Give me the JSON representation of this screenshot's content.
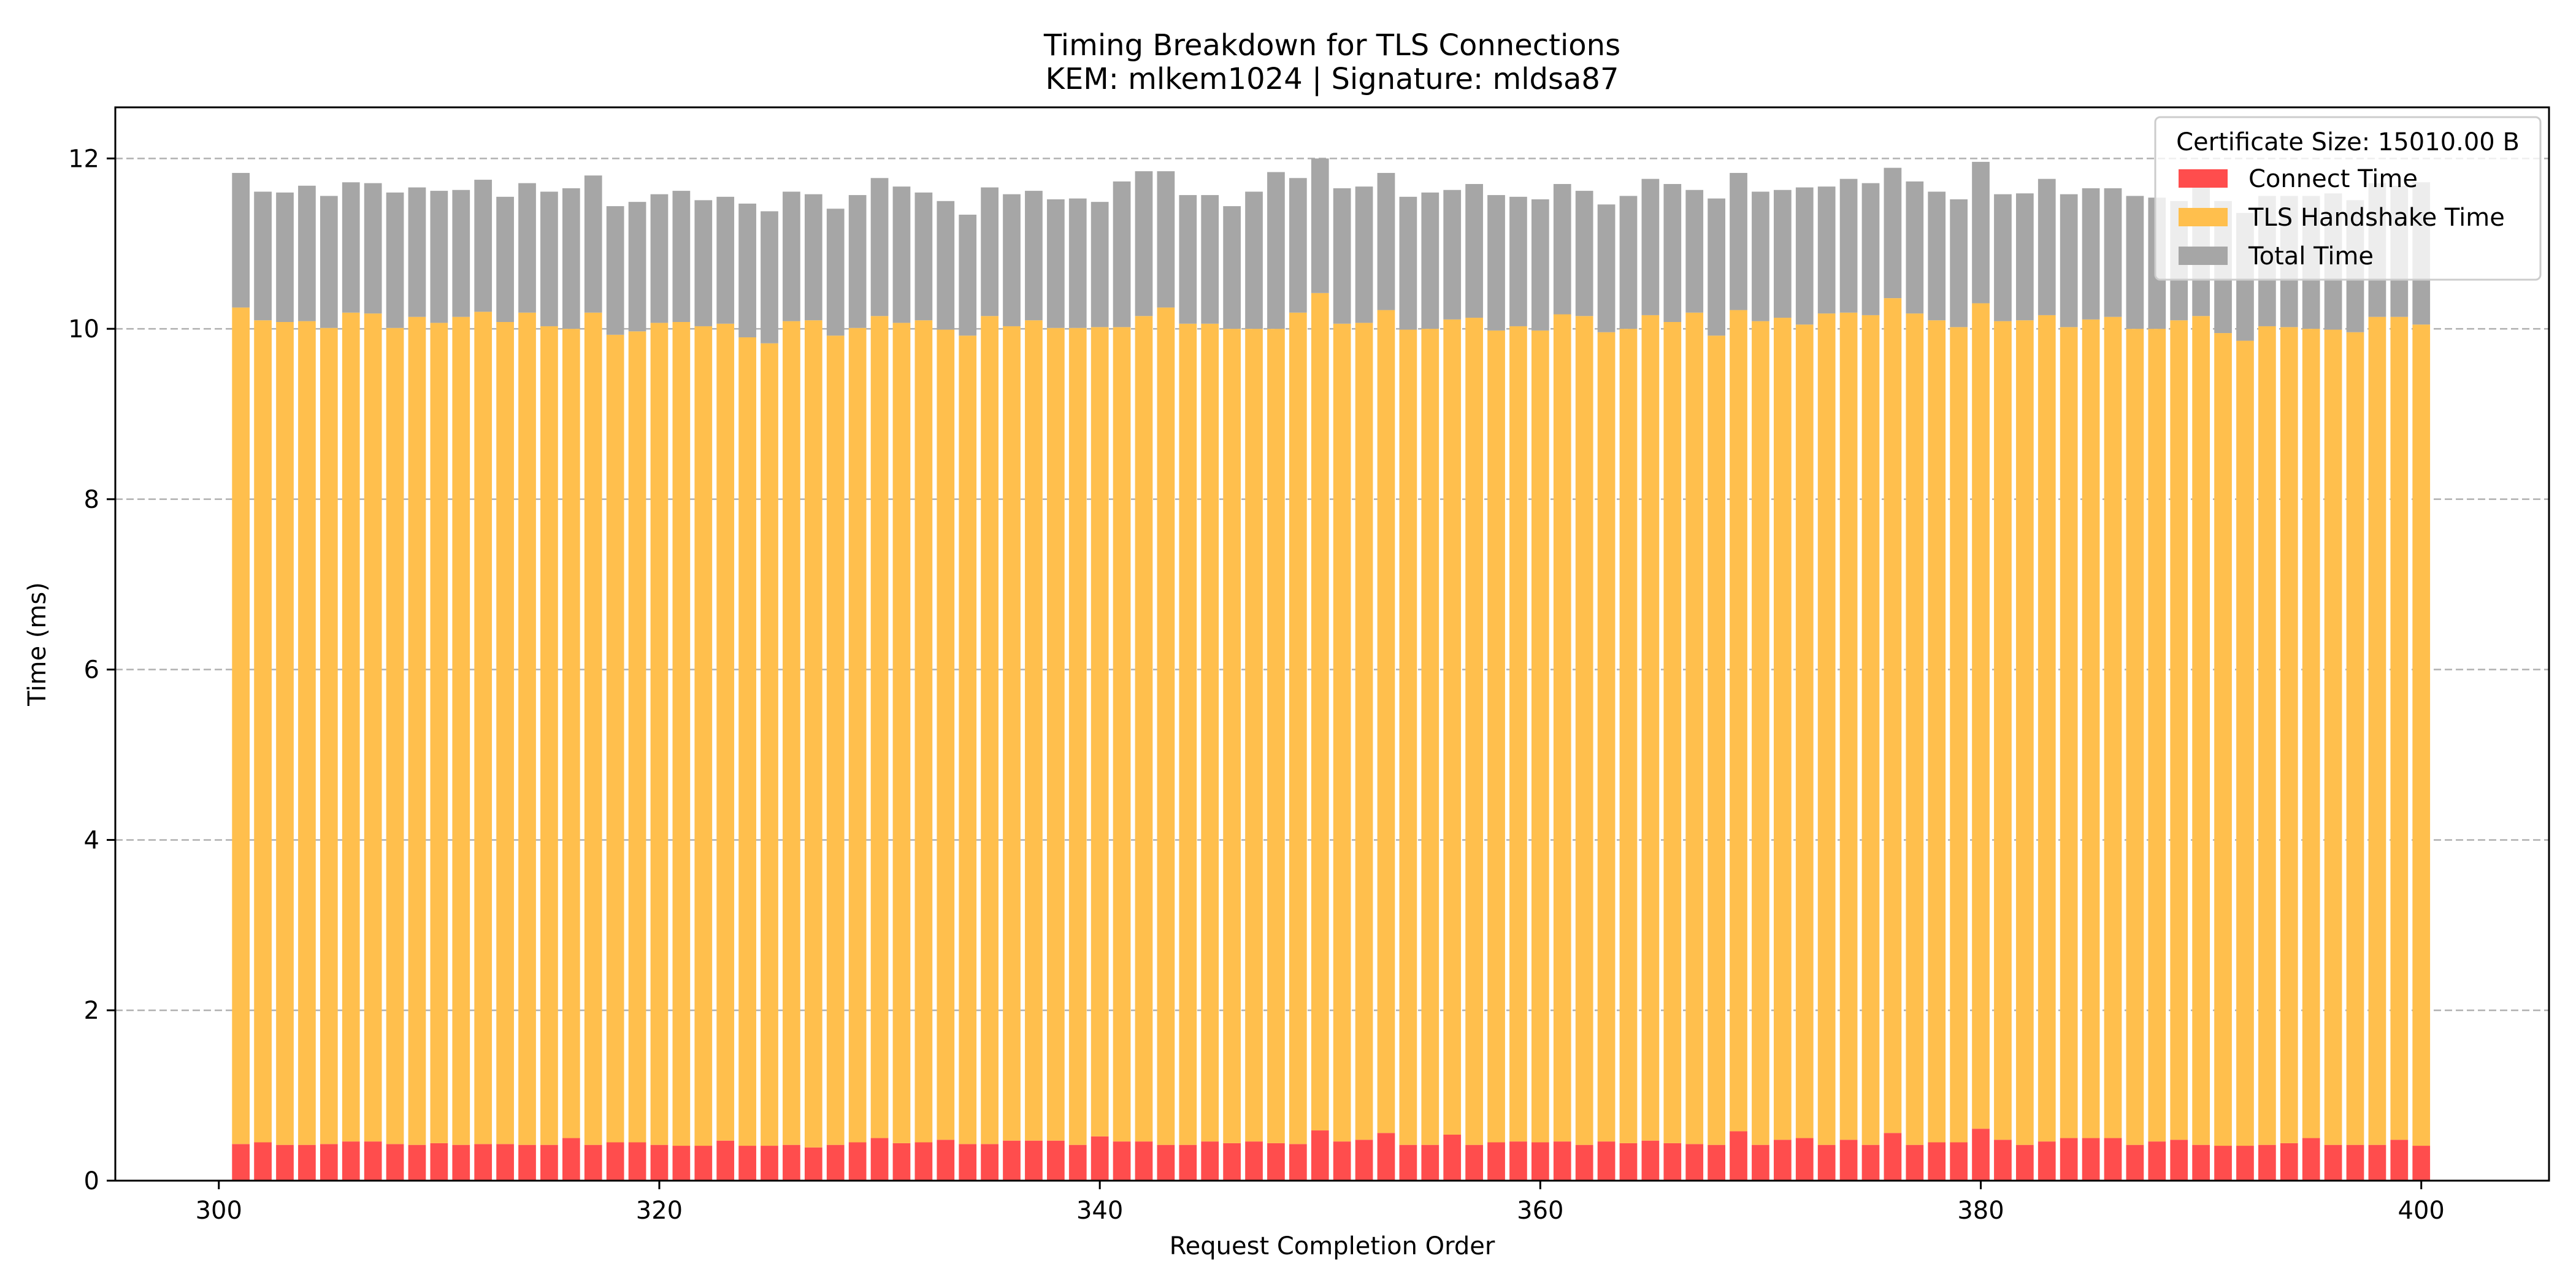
{
  "chart_data": {
    "type": "bar",
    "stacked": true,
    "title": "Timing Breakdown for TLS Connections",
    "subtitle": "KEM: mlkem1024 | Signature: mldsa87",
    "xlabel": "Request Completion Order",
    "ylabel": "Time (ms)",
    "xlim": [
      295.3,
      405.8
    ],
    "ylim": [
      0,
      12.6
    ],
    "x_ticks": [
      300,
      320,
      340,
      360,
      380,
      400
    ],
    "y_ticks": [
      0,
      2,
      4,
      6,
      8,
      10,
      12
    ],
    "grid": "y dashed",
    "legend": {
      "title": "Certificate Size: 15010.00 B",
      "placement": "top-right"
    },
    "x": [
      301,
      302,
      303,
      304,
      305,
      306,
      307,
      308,
      309,
      310,
      311,
      312,
      313,
      314,
      315,
      316,
      317,
      318,
      319,
      320,
      321,
      322,
      323,
      324,
      325,
      326,
      327,
      328,
      329,
      330,
      331,
      332,
      333,
      334,
      335,
      336,
      337,
      338,
      339,
      340,
      341,
      342,
      343,
      344,
      345,
      346,
      347,
      348,
      349,
      350,
      351,
      352,
      353,
      354,
      355,
      356,
      357,
      358,
      359,
      360,
      361,
      362,
      363,
      364,
      365,
      366,
      367,
      368,
      369,
      370,
      371,
      372,
      373,
      374,
      375,
      376,
      377,
      378,
      379,
      380,
      381,
      382,
      383,
      384,
      385,
      386,
      387,
      388,
      389,
      390,
      391,
      392,
      393,
      394,
      395,
      396,
      397,
      398,
      399,
      400
    ],
    "series": [
      {
        "name": "Connect Time",
        "color": "#ff4d4d",
        "values": [
          0.43,
          0.45,
          0.42,
          0.42,
          0.43,
          0.46,
          0.46,
          0.43,
          0.42,
          0.44,
          0.42,
          0.43,
          0.43,
          0.42,
          0.42,
          0.5,
          0.42,
          0.45,
          0.45,
          0.42,
          0.41,
          0.41,
          0.47,
          0.41,
          0.41,
          0.42,
          0.39,
          0.42,
          0.45,
          0.5,
          0.44,
          0.45,
          0.48,
          0.43,
          0.43,
          0.47,
          0.47,
          0.47,
          0.42,
          0.52,
          0.46,
          0.46,
          0.42,
          0.42,
          0.46,
          0.44,
          0.46,
          0.44,
          0.43,
          0.59,
          0.46,
          0.48,
          0.56,
          0.42,
          0.42,
          0.54,
          0.42,
          0.45,
          0.46,
          0.45,
          0.46,
          0.42,
          0.46,
          0.44,
          0.47,
          0.44,
          0.43,
          0.42,
          0.58,
          0.42,
          0.48,
          0.5,
          0.42,
          0.48,
          0.42,
          0.56,
          0.42,
          0.45,
          0.45,
          0.61,
          0.48,
          0.42,
          0.46,
          0.5,
          0.5,
          0.5,
          0.42,
          0.46,
          0.48,
          0.42,
          0.41,
          0.41,
          0.42,
          0.44,
          0.5,
          0.42,
          0.42,
          0.42,
          0.48,
          0.41
        ]
      },
      {
        "name": "TLS Handshake Time",
        "color": "#ffbf4d",
        "values": [
          9.82,
          9.65,
          9.66,
          9.67,
          9.58,
          9.73,
          9.72,
          9.58,
          9.72,
          9.63,
          9.72,
          9.77,
          9.65,
          9.77,
          9.61,
          9.5,
          9.77,
          9.48,
          9.52,
          9.65,
          9.67,
          9.62,
          9.59,
          9.49,
          9.42,
          9.67,
          9.71,
          9.5,
          9.56,
          9.65,
          9.63,
          9.65,
          9.51,
          9.49,
          9.72,
          9.56,
          9.63,
          9.54,
          9.59,
          9.5,
          9.56,
          9.69,
          9.83,
          9.64,
          9.6,
          9.56,
          9.54,
          9.56,
          9.76,
          9.83,
          9.6,
          9.59,
          9.66,
          9.57,
          9.58,
          9.57,
          9.71,
          9.53,
          9.57,
          9.53,
          9.71,
          9.73,
          9.5,
          9.56,
          9.69,
          9.64,
          9.76,
          9.5,
          9.64,
          9.67,
          9.65,
          9.55,
          9.76,
          9.71,
          9.74,
          9.8,
          9.76,
          9.65,
          9.57,
          9.69,
          9.61,
          9.68,
          9.7,
          9.52,
          9.61,
          9.64,
          9.58,
          9.54,
          9.62,
          9.73,
          9.54,
          9.45,
          9.61,
          9.58,
          9.5,
          9.57,
          9.54,
          9.72,
          9.66,
          9.64
        ]
      },
      {
        "name": "Total Time",
        "color": "#a6a6a6",
        "values": [
          1.58,
          1.51,
          1.52,
          1.59,
          1.55,
          1.53,
          1.53,
          1.59,
          1.52,
          1.55,
          1.49,
          1.55,
          1.47,
          1.52,
          1.58,
          1.65,
          1.61,
          1.51,
          1.52,
          1.51,
          1.54,
          1.48,
          1.49,
          1.57,
          1.55,
          1.52,
          1.48,
          1.49,
          1.56,
          1.62,
          1.6,
          1.5,
          1.51,
          1.42,
          1.51,
          1.55,
          1.52,
          1.51,
          1.52,
          1.47,
          1.71,
          1.7,
          1.6,
          1.51,
          1.51,
          1.44,
          1.61,
          1.84,
          1.58,
          1.58,
          1.59,
          1.6,
          1.61,
          1.56,
          1.6,
          1.52,
          1.57,
          1.59,
          1.52,
          1.54,
          1.53,
          1.47,
          1.5,
          1.56,
          1.6,
          1.62,
          1.44,
          1.61,
          1.61,
          1.52,
          1.5,
          1.61,
          1.49,
          1.57,
          1.55,
          1.53,
          1.55,
          1.51,
          1.5,
          1.66,
          1.49,
          1.49,
          1.6,
          1.56,
          1.54,
          1.51,
          1.56,
          1.54,
          1.4,
          1.56,
          1.55,
          1.5,
          1.53,
          1.54,
          1.56,
          1.6,
          1.55,
          1.57,
          1.54,
          1.67
        ]
      }
    ]
  }
}
